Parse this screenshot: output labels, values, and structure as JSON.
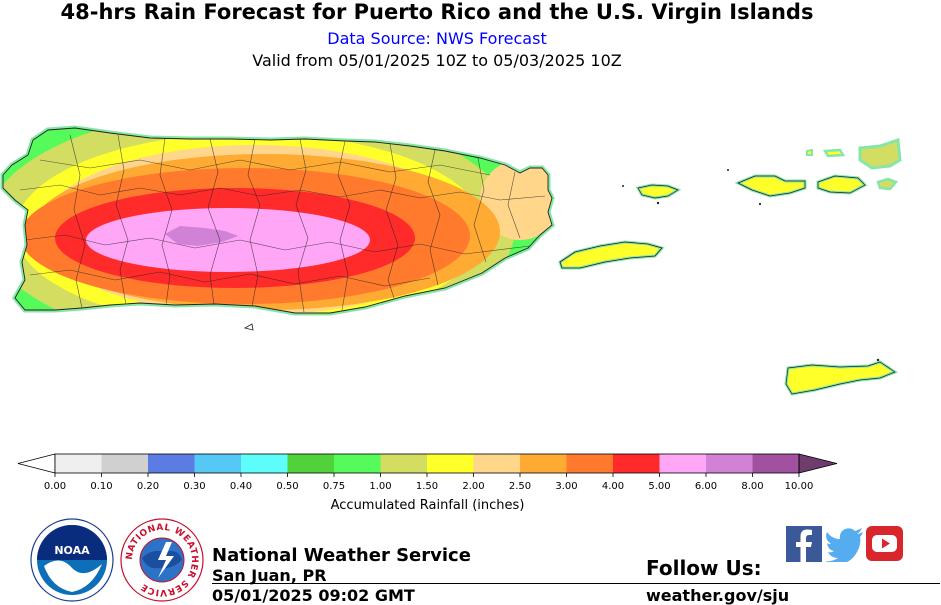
{
  "header": {
    "title": "48-hrs Rain Forecast for Puerto Rico and the U.S. Virgin Islands",
    "source": "Data Source: NWS Forecast",
    "valid": "Valid from 05/01/2025 10Z to 05/03/2025 10Z"
  },
  "legend": {
    "label": "Accumulated Rainfall (inches)",
    "ticks": [
      "0.00",
      "0.10",
      "0.20",
      "0.30",
      "0.40",
      "0.50",
      "0.75",
      "1.00",
      "1.50",
      "2.00",
      "2.50",
      "3.00",
      "4.00",
      "5.00",
      "6.00",
      "8.00",
      "10.00"
    ],
    "colors": [
      "#efefef",
      "#d0d0d0",
      "#5b7de3",
      "#55c8f5",
      "#5cfdfb",
      "#52d23a",
      "#55fb5a",
      "#d2dd62",
      "#ffff2a",
      "#ffd68a",
      "#ffaa33",
      "#ff7a2d",
      "#ff2a2a",
      "#ffa6f7",
      "#d182d6",
      "#a251a0"
    ],
    "under_color": "#ffffff",
    "over_color": "#6f3d6c"
  },
  "footer": {
    "agency": "National Weather Service",
    "office": "San Juan, PR",
    "issued": "05/01/2025 09:02 GMT",
    "follow": "Follow Us:",
    "site": "weather.gov/sju",
    "noaa_text": "NOAA",
    "nws_ring_text": "NATIONAL WEATHER SERVICE",
    "social": [
      "facebook",
      "twitter",
      "youtube"
    ]
  },
  "map": {
    "regions": [
      "Puerto Rico",
      "Vieques",
      "Culebra",
      "St. Thomas",
      "St. John",
      "St. Croix"
    ]
  }
}
